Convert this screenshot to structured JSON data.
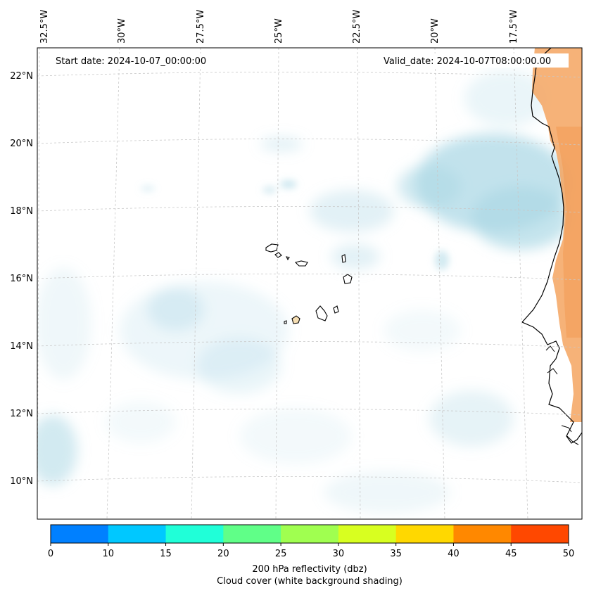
{
  "map": {
    "start_date": "Start date: 2024-10-07_00:00:00",
    "valid_date": "Valid_date: 2024-10-07T08:00:00.00",
    "lon_labels": [
      "32.5°W",
      "30°W",
      "27.5°W",
      "25°W",
      "22.5°W",
      "20°W",
      "17.5°W"
    ],
    "lat_labels": [
      "22°N",
      "20°N",
      "18°N",
      "16°N",
      "14°N",
      "12°N",
      "10°N"
    ]
  },
  "colorbar": {
    "ticks": [
      "0",
      "10",
      "15",
      "20",
      "25",
      "30",
      "35",
      "40",
      "45",
      "50"
    ],
    "colors": [
      "#0080ff",
      "#00c8ff",
      "#20ffd8",
      "#60ff88",
      "#a0ff50",
      "#d8ff20",
      "#ffd800",
      "#ff8800",
      "#ff4800"
    ],
    "label_line1": "200 hPa reflectivity (dbz)",
    "label_line2": "Cloud cover (white background shading)"
  },
  "colors": {
    "cloud": "#add8e6",
    "land": "#f4a460",
    "coast": "#000000",
    "grid": "#c8c8c8"
  }
}
